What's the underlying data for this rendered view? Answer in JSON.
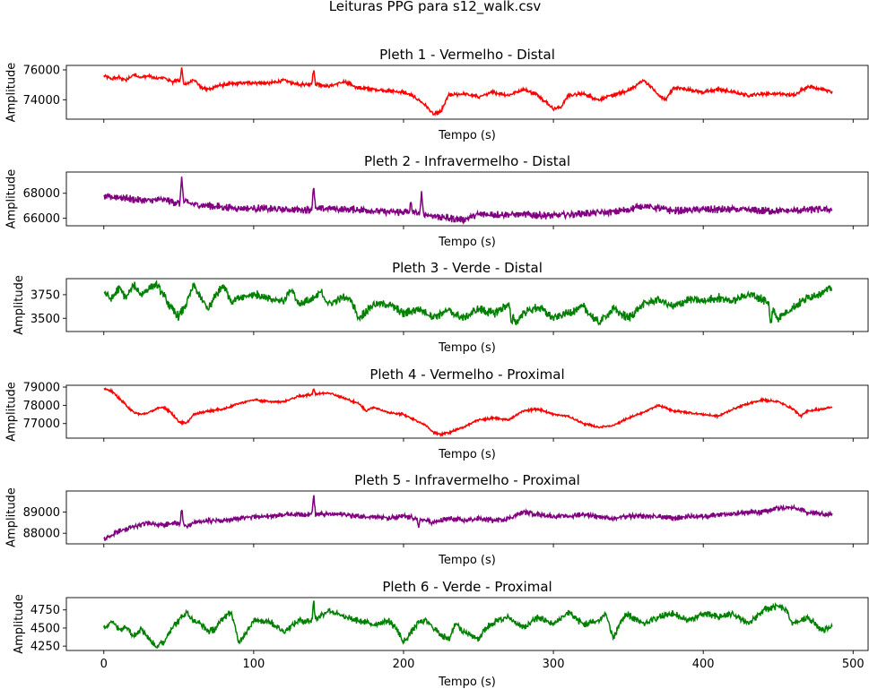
{
  "figure": {
    "title": "Leituras PPG para s12_walk.csv"
  },
  "chart_data": [
    {
      "type": "line",
      "title": "Pleth 1 - Vermelho - Distal",
      "xlabel": "Tempo (s)",
      "ylabel": "Amplitude",
      "color": "#ff0000",
      "xlim": [
        -25,
        510
      ],
      "ylim": [
        72700,
        76300
      ],
      "yticks": [
        74000,
        76000
      ],
      "xticks": [
        0,
        100,
        200,
        300,
        400,
        500
      ],
      "show_xtick_labels": false,
      "noise": 90,
      "series": [
        {
          "x": [
            0,
            5,
            10,
            15,
            20,
            25,
            30,
            35,
            40,
            45,
            50,
            55,
            60,
            65,
            70,
            75,
            80,
            90,
            100,
            110,
            120,
            130,
            140,
            150,
            160,
            170,
            180,
            190,
            200,
            205,
            210,
            215,
            220,
            225,
            230,
            240,
            250,
            260,
            270,
            280,
            290,
            300,
            305,
            310,
            320,
            330,
            340,
            350,
            360,
            365,
            370,
            375,
            380,
            390,
            400,
            410,
            420,
            430,
            440,
            450,
            460,
            470,
            480,
            486
          ],
          "y": [
            75600,
            75400,
            75500,
            75300,
            75700,
            75500,
            75600,
            75400,
            75500,
            75200,
            75300,
            75000,
            75400,
            74800,
            74700,
            74900,
            75000,
            75100,
            75150,
            75100,
            75300,
            75000,
            75100,
            74900,
            75200,
            74800,
            74700,
            74600,
            74500,
            74300,
            74000,
            73600,
            73000,
            73200,
            74300,
            74400,
            74200,
            74500,
            74300,
            74700,
            74300,
            73400,
            73500,
            74300,
            74400,
            74000,
            74300,
            74600,
            75300,
            74900,
            74300,
            74000,
            74800,
            74700,
            74500,
            74700,
            74500,
            74300,
            74400,
            74400,
            74300,
            74900,
            74700,
            74500
          ]
        }
      ],
      "spikes": [
        {
          "x": 52,
          "y": 76200
        },
        {
          "x": 140,
          "y": 76050
        }
      ]
    },
    {
      "type": "line",
      "title": "Pleth 2 - Infravermelho - Distal",
      "xlabel": "Tempo (s)",
      "ylabel": "Amplitude",
      "color": "#800080",
      "xlim": [
        -25,
        510
      ],
      "ylim": [
        65400,
        69700
      ],
      "yticks": [
        66000,
        68000
      ],
      "xticks": [
        0,
        100,
        200,
        300,
        400,
        500
      ],
      "show_xtick_labels": false,
      "noise": 220,
      "series": [
        {
          "x": [
            0,
            10,
            20,
            30,
            40,
            50,
            55,
            60,
            70,
            80,
            90,
            100,
            120,
            140,
            150,
            160,
            170,
            180,
            190,
            200,
            210,
            220,
            230,
            240,
            250,
            260,
            280,
            300,
            320,
            340,
            350,
            360,
            370,
            380,
            400,
            420,
            440,
            460,
            470,
            486
          ],
          "y": [
            67700,
            67700,
            67500,
            67400,
            67500,
            67200,
            67300,
            67100,
            67000,
            66900,
            66800,
            66800,
            66700,
            66700,
            66800,
            66700,
            66700,
            66600,
            66500,
            66500,
            66400,
            66200,
            66000,
            65900,
            66300,
            66300,
            66300,
            66200,
            66400,
            66500,
            66700,
            67000,
            66800,
            66600,
            66700,
            66700,
            66600,
            66600,
            66700,
            66700
          ]
        }
      ],
      "spikes": [
        {
          "x": 52,
          "y": 69500
        },
        {
          "x": 140,
          "y": 68800
        },
        {
          "x": 212,
          "y": 68000
        },
        {
          "x": 205,
          "y": 67300
        }
      ]
    },
    {
      "type": "line",
      "title": "Pleth 3 - Verde - Distal",
      "xlabel": "Tempo (s)",
      "ylabel": "Amplitude",
      "color": "#008000",
      "xlim": [
        -25,
        510
      ],
      "ylim": [
        3360,
        3920
      ],
      "yticks": [
        3500,
        3750
      ],
      "xticks": [
        0,
        100,
        200,
        300,
        400,
        500
      ],
      "show_xtick_labels": false,
      "noise": 35,
      "series": [
        {
          "x": [
            0,
            5,
            10,
            15,
            20,
            25,
            30,
            35,
            40,
            45,
            50,
            55,
            60,
            65,
            70,
            75,
            80,
            85,
            90,
            100,
            110,
            120,
            125,
            130,
            140,
            145,
            150,
            160,
            165,
            170,
            180,
            190,
            200,
            210,
            220,
            230,
            240,
            250,
            260,
            270,
            275,
            280,
            290,
            300,
            310,
            320,
            330,
            340,
            350,
            360,
            370,
            380,
            390,
            400,
            410,
            420,
            430,
            440,
            445,
            450,
            460,
            470,
            480,
            486
          ],
          "y": [
            3780,
            3700,
            3820,
            3720,
            3850,
            3750,
            3820,
            3860,
            3740,
            3600,
            3520,
            3650,
            3850,
            3700,
            3600,
            3750,
            3850,
            3680,
            3720,
            3760,
            3700,
            3680,
            3820,
            3650,
            3700,
            3780,
            3650,
            3720,
            3700,
            3500,
            3650,
            3650,
            3550,
            3600,
            3520,
            3580,
            3500,
            3600,
            3550,
            3650,
            3450,
            3560,
            3620,
            3500,
            3560,
            3620,
            3450,
            3600,
            3500,
            3650,
            3700,
            3620,
            3700,
            3680,
            3720,
            3680,
            3760,
            3700,
            3620,
            3500,
            3620,
            3720,
            3780,
            3820
          ]
        }
      ],
      "spikes": [
        {
          "x": 445,
          "y": 3420
        },
        {
          "x": 272,
          "y": 3410
        }
      ]
    },
    {
      "type": "line",
      "title": "Pleth 4 - Vermelho - Proximal",
      "xlabel": "Tempo (s)",
      "ylabel": "Amplitude",
      "color": "#ff0000",
      "xlim": [
        -25,
        510
      ],
      "ylim": [
        76200,
        79100
      ],
      "yticks": [
        77000,
        78000,
        79000
      ],
      "xticks": [
        0,
        100,
        200,
        300,
        400,
        500
      ],
      "show_xtick_labels": false,
      "noise": 45,
      "series": [
        {
          "x": [
            0,
            5,
            10,
            15,
            20,
            25,
            30,
            35,
            40,
            45,
            50,
            55,
            60,
            70,
            80,
            90,
            100,
            110,
            120,
            130,
            140,
            150,
            160,
            170,
            175,
            180,
            190,
            200,
            210,
            215,
            220,
            225,
            230,
            240,
            250,
            260,
            270,
            280,
            290,
            300,
            310,
            320,
            330,
            340,
            350,
            360,
            370,
            380,
            390,
            400,
            410,
            420,
            430,
            440,
            450,
            460,
            465,
            470,
            480,
            486
          ],
          "y": [
            78900,
            78800,
            78400,
            78000,
            77600,
            77500,
            77600,
            77800,
            77900,
            77600,
            77100,
            77000,
            77500,
            77700,
            77800,
            78100,
            78300,
            78200,
            78200,
            78500,
            78600,
            78700,
            78400,
            78100,
            77700,
            77900,
            77600,
            77500,
            77100,
            76900,
            76500,
            76400,
            76500,
            76800,
            77200,
            77300,
            77200,
            77700,
            77800,
            77500,
            77400,
            77000,
            76800,
            76900,
            77300,
            77600,
            78000,
            77700,
            77600,
            77500,
            77400,
            77800,
            78100,
            78300,
            78200,
            77800,
            77400,
            77700,
            77800,
            77900
          ]
        }
      ],
      "spikes": [
        {
          "x": 140,
          "y": 78950
        }
      ]
    },
    {
      "type": "line",
      "title": "Pleth 5 - Infravermelho - Proximal",
      "xlabel": "Tempo (s)",
      "ylabel": "Amplitude",
      "color": "#800080",
      "xlim": [
        -25,
        510
      ],
      "ylim": [
        87500,
        90000
      ],
      "yticks": [
        88000,
        89000
      ],
      "xticks": [
        0,
        100,
        200,
        300,
        400,
        500
      ],
      "show_xtick_labels": false,
      "noise": 90,
      "series": [
        {
          "x": [
            0,
            5,
            10,
            20,
            30,
            40,
            50,
            55,
            60,
            70,
            80,
            90,
            100,
            110,
            120,
            130,
            140,
            150,
            160,
            170,
            180,
            190,
            200,
            210,
            220,
            230,
            240,
            250,
            260,
            270,
            280,
            290,
            300,
            310,
            320,
            330,
            340,
            350,
            360,
            370,
            380,
            390,
            400,
            410,
            420,
            430,
            440,
            450,
            460,
            470,
            480,
            486
          ],
          "y": [
            87700,
            87900,
            88100,
            88300,
            88500,
            88400,
            88500,
            88300,
            88500,
            88600,
            88600,
            88700,
            88800,
            88800,
            88900,
            88900,
            88900,
            88900,
            88900,
            88800,
            88800,
            88700,
            88800,
            88700,
            88500,
            88700,
            88600,
            88700,
            88600,
            88700,
            89000,
            88900,
            88800,
            88800,
            88900,
            88800,
            88700,
            88800,
            88800,
            88800,
            88700,
            88800,
            88800,
            88900,
            88900,
            89000,
            89000,
            89200,
            89200,
            89000,
            88900,
            88900
          ]
        }
      ],
      "spikes": [
        {
          "x": 140,
          "y": 89850
        },
        {
          "x": 52,
          "y": 89200
        },
        {
          "x": 210,
          "y": 88200
        }
      ]
    },
    {
      "type": "line",
      "title": "Pleth 6 - Verde - Proximal",
      "xlabel": "Tempo (s)",
      "ylabel": "Amplitude",
      "color": "#008000",
      "xlim": [
        -25,
        510
      ],
      "ylim": [
        4190,
        4920
      ],
      "yticks": [
        4250,
        4500,
        4750
      ],
      "xticks": [
        0,
        100,
        200,
        300,
        400,
        500
      ],
      "show_xtick_labels": true,
      "noise": 35,
      "series": [
        {
          "x": [
            0,
            5,
            10,
            15,
            20,
            25,
            30,
            35,
            40,
            45,
            50,
            55,
            60,
            65,
            70,
            75,
            80,
            85,
            90,
            100,
            110,
            120,
            130,
            140,
            150,
            160,
            170,
            180,
            190,
            195,
            200,
            210,
            215,
            220,
            230,
            235,
            240,
            250,
            255,
            260,
            270,
            280,
            290,
            300,
            310,
            320,
            330,
            335,
            340,
            345,
            350,
            360,
            370,
            380,
            390,
            400,
            410,
            420,
            430,
            440,
            450,
            455,
            460,
            470,
            480,
            486
          ],
          "y": [
            4500,
            4600,
            4480,
            4520,
            4400,
            4500,
            4350,
            4250,
            4300,
            4500,
            4600,
            4720,
            4600,
            4550,
            4450,
            4500,
            4650,
            4720,
            4300,
            4600,
            4600,
            4450,
            4600,
            4600,
            4750,
            4650,
            4600,
            4550,
            4600,
            4500,
            4300,
            4580,
            4600,
            4500,
            4330,
            4580,
            4450,
            4350,
            4500,
            4580,
            4650,
            4500,
            4650,
            4550,
            4720,
            4550,
            4600,
            4700,
            4350,
            4600,
            4680,
            4550,
            4650,
            4700,
            4600,
            4700,
            4650,
            4700,
            4550,
            4750,
            4800,
            4750,
            4550,
            4650,
            4450,
            4550
          ]
        }
      ],
      "spikes": [
        {
          "x": 140,
          "y": 4880
        }
      ]
    }
  ]
}
